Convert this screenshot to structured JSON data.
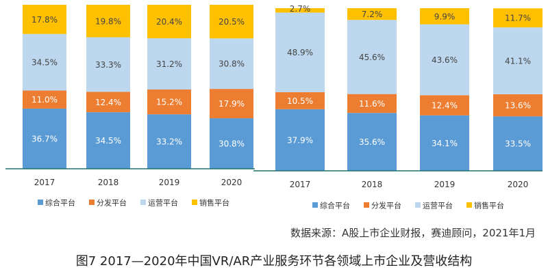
{
  "chart_data": [
    {
      "type": "bar",
      "stacked": true,
      "categories": [
        "2017",
        "2018",
        "2019",
        "2020"
      ],
      "series": [
        {
          "name": "综合平台",
          "color": "#5B9BD5",
          "values": [
            36.7,
            34.5,
            33.2,
            30.8
          ]
        },
        {
          "name": "分发平台",
          "color": "#ED7D31",
          "values": [
            11.0,
            12.4,
            15.2,
            17.9
          ]
        },
        {
          "name": "运营平台",
          "color": "#BDD7EE",
          "values": [
            34.5,
            33.3,
            31.2,
            30.8
          ]
        },
        {
          "name": "销售平台",
          "color": "#FFC000",
          "values": [
            17.8,
            19.8,
            20.4,
            20.5
          ]
        }
      ],
      "labels": [
        [
          "36.7%",
          "34.5%",
          "33.2%",
          "30.8%"
        ],
        [
          "11.0%",
          "12.4%",
          "15.2%",
          "17.9%"
        ],
        [
          "34.5%",
          "33.3%",
          "31.2%",
          "30.8%"
        ],
        [
          "17.8%",
          "19.8%",
          "20.4%",
          "20.5%"
        ]
      ],
      "ylim": [
        0,
        100
      ],
      "legend_position": "bottom"
    },
    {
      "type": "bar",
      "stacked": true,
      "categories": [
        "2017",
        "2018",
        "2019",
        "2020"
      ],
      "series": [
        {
          "name": "综合平台",
          "color": "#5B9BD5",
          "values": [
            37.9,
            35.6,
            34.1,
            33.5
          ]
        },
        {
          "name": "分发平台",
          "color": "#ED7D31",
          "values": [
            10.5,
            11.6,
            12.4,
            13.6
          ]
        },
        {
          "name": "运营平台",
          "color": "#BDD7EE",
          "values": [
            48.9,
            45.6,
            43.6,
            41.1
          ]
        },
        {
          "name": "销售平台",
          "color": "#FFC000",
          "values": [
            2.7,
            7.2,
            9.9,
            11.7
          ]
        }
      ],
      "labels": [
        [
          "37.9%",
          "35.6%",
          "34.1%",
          "33.5%"
        ],
        [
          "10.5%",
          "11.6%",
          "12.4%",
          "13.6%"
        ],
        [
          "48.9%",
          "45.6%",
          "43.6%",
          "41.1%"
        ],
        [
          "2.7%",
          "7.2%",
          "9.9%",
          "11.7%"
        ]
      ],
      "ylim": [
        0,
        100
      ],
      "legend_position": "bottom"
    }
  ],
  "source_note": "数据来源：A股上市企业财报，赛迪顾问，2021年1月",
  "caption": "图7 2017—2020年中国VR/AR产业服务环节各领域上市企业及营收结构"
}
